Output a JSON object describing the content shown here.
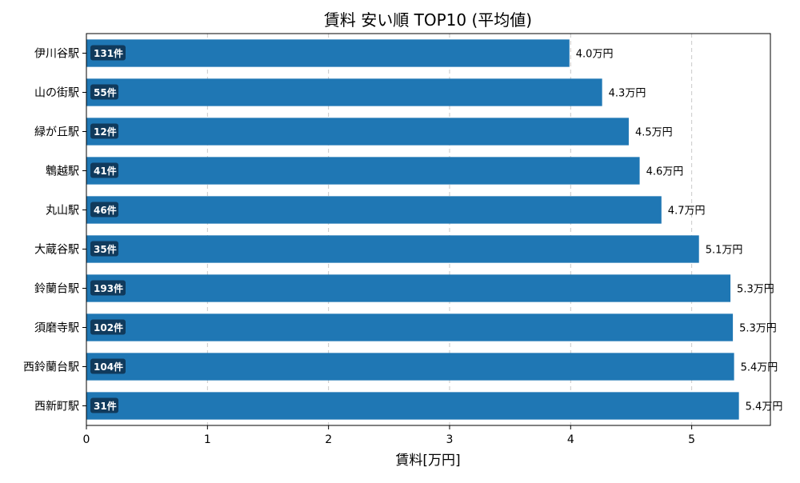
{
  "chart_data": {
    "type": "bar",
    "orientation": "horizontal",
    "title": "賃料 安い順 TOP10 (平均値)",
    "xlabel": "賃料[万円]",
    "ylabel": "",
    "xlim": [
      0,
      5.65
    ],
    "xticks": [
      "0",
      "1",
      "2",
      "3",
      "4",
      "5"
    ],
    "grid": "x-dashed",
    "bar_color": "#1f77b4",
    "badge_color": "#103a5c",
    "categories": [
      "伊川谷駅",
      "山の街駅",
      "緑が丘駅",
      "鵯越駅",
      "丸山駅",
      "大蔵谷駅",
      "鈴蘭台駅",
      "須磨寺駅",
      "西鈴蘭台駅",
      "西新町駅"
    ],
    "values": [
      3.99,
      4.26,
      4.48,
      4.57,
      4.75,
      5.06,
      5.32,
      5.34,
      5.35,
      5.39
    ],
    "value_labels": [
      "4.0万円",
      "4.3万円",
      "4.5万円",
      "4.6万円",
      "4.7万円",
      "5.1万円",
      "5.3万円",
      "5.3万円",
      "5.4万円",
      "5.4万円"
    ],
    "counts": [
      "131件",
      "55件",
      "12件",
      "41件",
      "46件",
      "35件",
      "193件",
      "102件",
      "104件",
      "31件"
    ]
  }
}
